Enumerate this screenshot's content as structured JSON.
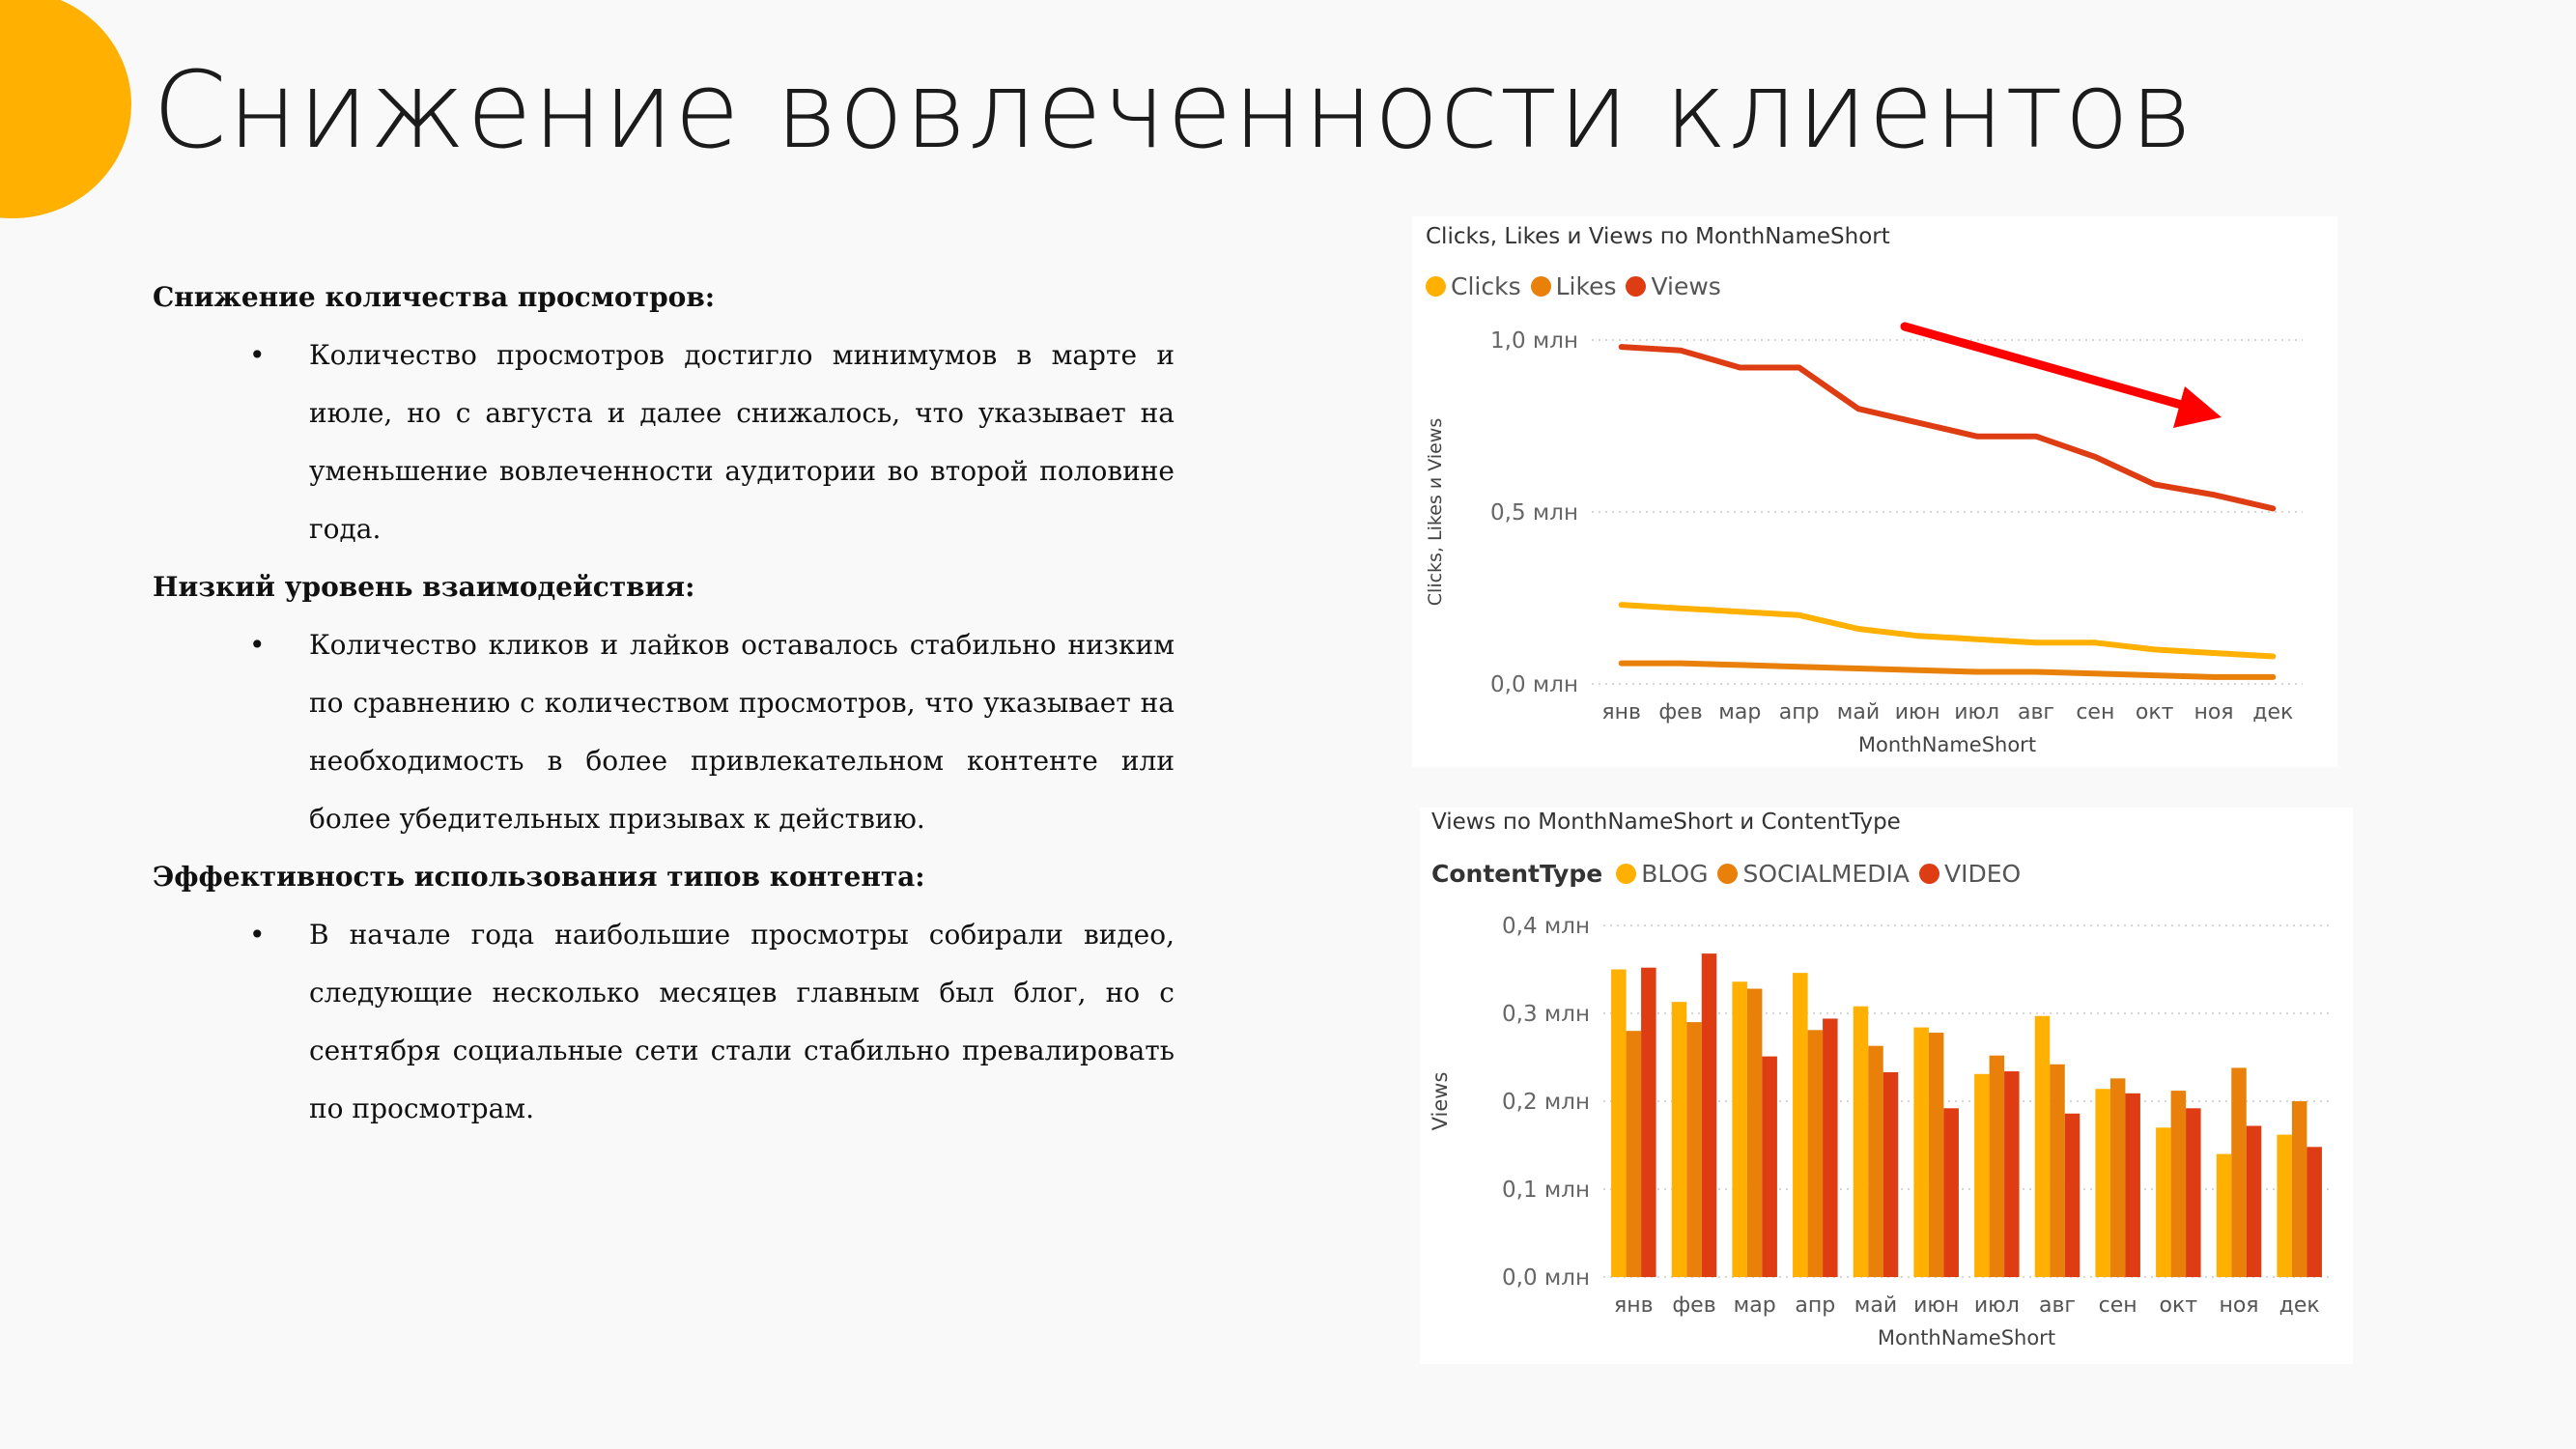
{
  "slide": {
    "title": "Снижение вовлеченности клиентов",
    "sections": [
      {
        "heading": "Снижение количества просмотров:",
        "bullet": "Количество просмотров достигло минимумов в марте и июле, но с августа и далее снижалось, что указывает на уменьшение вовлеченности аудитории во второй половине года."
      },
      {
        "heading": "Низкий уровень взаимодействия:",
        "bullet": "Количество кликов и лайков оставалось стабильно низким по сравнению с количеством просмотров, что указывает на необходимость в более привлекательном контенте или более убедительных призывах к действию."
      },
      {
        "heading": "Эффективность использования типов контента:",
        "bullet": "В начале года наибольшие просмотры собирали видео, следующие несколько месяцев главным был блог, но с сентября социальные сети стали стабильно превалировать по просмотрам."
      }
    ],
    "bullet_char": "•",
    "accent_color": "#ffb000"
  },
  "chart_data": [
    {
      "type": "line",
      "title": "Clicks, Likes и Views по MonthNameShort",
      "xlabel": "MonthNameShort",
      "ylabel": "Clicks, Likes и Views",
      "categories": [
        "янв",
        "фев",
        "мар",
        "апр",
        "май",
        "июн",
        "июл",
        "авг",
        "сен",
        "окт",
        "ноя",
        "дек"
      ],
      "y_ticks": [
        "0,0 млн",
        "0,5 млн",
        "1,0 млн"
      ],
      "ylim": [
        0,
        1.0
      ],
      "grid": true,
      "legend": "top-left",
      "series": [
        {
          "name": "Clicks",
          "color": "#ffb000",
          "values": [
            0.23,
            0.22,
            0.21,
            0.2,
            0.16,
            0.14,
            0.13,
            0.12,
            0.12,
            0.1,
            0.09,
            0.08
          ]
        },
        {
          "name": "Likes",
          "color": "#e8800a",
          "values": [
            0.06,
            0.06,
            0.055,
            0.05,
            0.045,
            0.04,
            0.035,
            0.035,
            0.03,
            0.025,
            0.02,
            0.02
          ]
        },
        {
          "name": "Views",
          "color": "#de3c12",
          "values": [
            0.98,
            0.97,
            0.92,
            0.92,
            0.8,
            0.76,
            0.72,
            0.72,
            0.66,
            0.58,
            0.55,
            0.51
          ]
        }
      ],
      "annotation": {
        "type": "arrow",
        "meaning": "downward trend",
        "color": "#ff0000"
      }
    },
    {
      "type": "bar",
      "title": "Views по MonthNameShort и ContentType",
      "legend_title": "ContentType",
      "xlabel": "MonthNameShort",
      "ylabel": "Views",
      "categories": [
        "янв",
        "фев",
        "мар",
        "апр",
        "май",
        "июн",
        "июл",
        "авг",
        "сен",
        "окт",
        "ноя",
        "дек"
      ],
      "y_ticks": [
        "0,0 млн",
        "0,1 млн",
        "0,2 млн",
        "0,3 млн",
        "0,4 млн"
      ],
      "ylim": [
        0,
        0.4
      ],
      "grid": true,
      "legend": "top-left",
      "series": [
        {
          "name": "BLOG",
          "color": "#ffb000",
          "values": [
            0.35,
            0.313,
            0.336,
            0.346,
            0.308,
            0.284,
            0.231,
            0.297,
            0.214,
            0.17,
            0.14,
            0.162
          ]
        },
        {
          "name": "SOCIALMEDIA",
          "color": "#e8800a",
          "values": [
            0.28,
            0.29,
            0.328,
            0.281,
            0.263,
            0.278,
            0.252,
            0.242,
            0.226,
            0.212,
            0.238,
            0.2
          ]
        },
        {
          "name": "VIDEO",
          "color": "#de3c12",
          "values": [
            0.352,
            0.368,
            0.251,
            0.294,
            0.233,
            0.192,
            0.234,
            0.186,
            0.209,
            0.192,
            0.172,
            0.148
          ]
        }
      ]
    }
  ]
}
